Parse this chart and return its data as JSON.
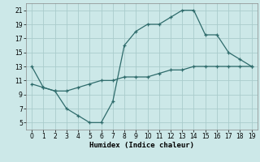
{
  "xlabel": "Humidex (Indice chaleur)",
  "line1_x": [
    0,
    1,
    2,
    3,
    4,
    5,
    6,
    7,
    8,
    9,
    10,
    11,
    12,
    13,
    14,
    15,
    16,
    17,
    18,
    19
  ],
  "line1_y": [
    13,
    10,
    9.5,
    7,
    6,
    5,
    5,
    8,
    16,
    18,
    19,
    19,
    20,
    21,
    21,
    17.5,
    17.5,
    15,
    14,
    13
  ],
  "line2_x": [
    0,
    1,
    2,
    3,
    4,
    5,
    6,
    7,
    8,
    9,
    10,
    11,
    12,
    13,
    14,
    15,
    16,
    17,
    18,
    19
  ],
  "line2_y": [
    10.5,
    10,
    9.5,
    9.5,
    10,
    10.5,
    11,
    11,
    11.5,
    11.5,
    11.5,
    12,
    12.5,
    12.5,
    13,
    13,
    13,
    13,
    13,
    13
  ],
  "line_color": "#2e6b6b",
  "bg_color": "#cce8e8",
  "grid_color": "#aacccc",
  "xlim": [
    0,
    19
  ],
  "ylim": [
    4,
    22
  ],
  "yticks": [
    5,
    7,
    9,
    11,
    13,
    15,
    17,
    19,
    21
  ],
  "xticks": [
    0,
    1,
    2,
    3,
    4,
    5,
    6,
    7,
    8,
    9,
    10,
    11,
    12,
    13,
    14,
    15,
    16,
    17,
    18,
    19
  ],
  "tick_fontsize": 5.5,
  "xlabel_fontsize": 6.5
}
